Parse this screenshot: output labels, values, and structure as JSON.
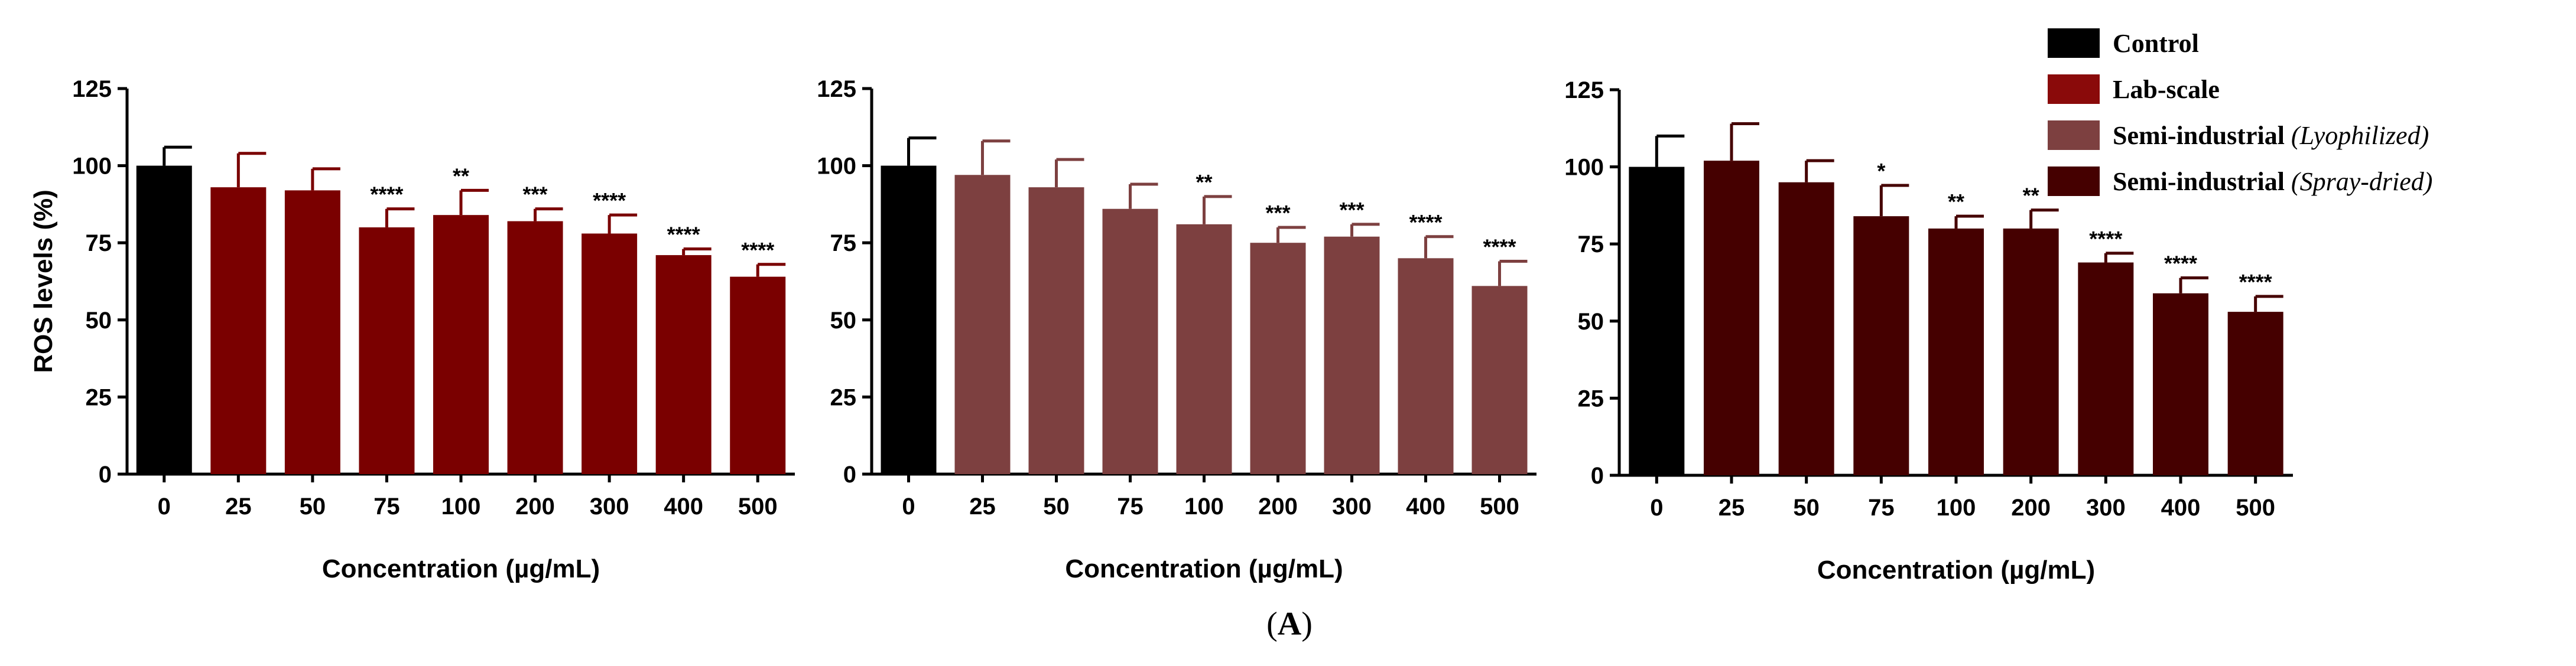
{
  "chart_data": [
    {
      "type": "bar",
      "panel": "left",
      "categories": [
        "0",
        "25",
        "50",
        "75",
        "100",
        "200",
        "300",
        "400",
        "500"
      ],
      "values": [
        100,
        93,
        92,
        80,
        84,
        82,
        78,
        71,
        64
      ],
      "errors": [
        6,
        11,
        7,
        6,
        8,
        4,
        6,
        2,
        4
      ],
      "significance": [
        "",
        "",
        "",
        "****",
        "**",
        "***",
        "****",
        "****",
        "****"
      ],
      "colors": [
        "#000000",
        "#7a0000",
        "#7a0000",
        "#7a0000",
        "#7a0000",
        "#7a0000",
        "#7a0000",
        "#7a0000",
        "#7a0000"
      ],
      "yticks": [
        "0",
        "25",
        "50",
        "75",
        "100",
        "125"
      ],
      "ylim": [
        0,
        125
      ],
      "xlabel": "Concentration (µg/mL)",
      "ylabel": "ROS levels (%)"
    },
    {
      "type": "bar",
      "panel": "middle",
      "categories": [
        "0",
        "25",
        "50",
        "75",
        "100",
        "200",
        "300",
        "400",
        "500"
      ],
      "values": [
        100,
        97,
        93,
        86,
        81,
        75,
        77,
        70,
        61
      ],
      "errors": [
        9,
        11,
        9,
        8,
        9,
        5,
        4,
        7,
        8
      ],
      "significance": [
        "",
        "",
        "",
        "",
        "**",
        "***",
        "***",
        "****",
        "****"
      ],
      "colors": [
        "#000000",
        "#7d4040",
        "#7d4040",
        "#7d4040",
        "#7d4040",
        "#7d4040",
        "#7d4040",
        "#7d4040",
        "#7d4040"
      ],
      "yticks": [
        "0",
        "25",
        "50",
        "75",
        "100",
        "125"
      ],
      "ylim": [
        0,
        125
      ],
      "xlabel": "Concentration (µg/mL)",
      "ylabel": ""
    },
    {
      "type": "bar",
      "panel": "right",
      "categories": [
        "0",
        "25",
        "50",
        "75",
        "100",
        "200",
        "300",
        "400",
        "500"
      ],
      "values": [
        100,
        102,
        95,
        84,
        80,
        80,
        69,
        59,
        53
      ],
      "errors": [
        10,
        12,
        7,
        10,
        4,
        6,
        3,
        5,
        5
      ],
      "significance": [
        "",
        "",
        "",
        "*",
        "**",
        "**",
        "****",
        "****",
        "****"
      ],
      "colors": [
        "#000000",
        "#450000",
        "#450000",
        "#450000",
        "#450000",
        "#450000",
        "#450000",
        "#450000",
        "#450000"
      ],
      "yticks": [
        "0",
        "25",
        "50",
        "75",
        "100",
        "125"
      ],
      "ylim": [
        0,
        125
      ],
      "xlabel": "Concentration (µg/mL)",
      "ylabel": ""
    }
  ],
  "legend": [
    {
      "label": "Control",
      "italic": "",
      "color": "#000000"
    },
    {
      "label": "Lab-scale",
      "italic": "",
      "color": "#8a0a0a"
    },
    {
      "label": "Semi-industrial ",
      "italic": "(Lyophilized)",
      "color": "#7d4040"
    },
    {
      "label": "Semi-industrial ",
      "italic": "(Spray-dried)",
      "color": "#450000"
    }
  ],
  "panel_label": {
    "open": "(",
    "letter": "A",
    "close": ")"
  }
}
